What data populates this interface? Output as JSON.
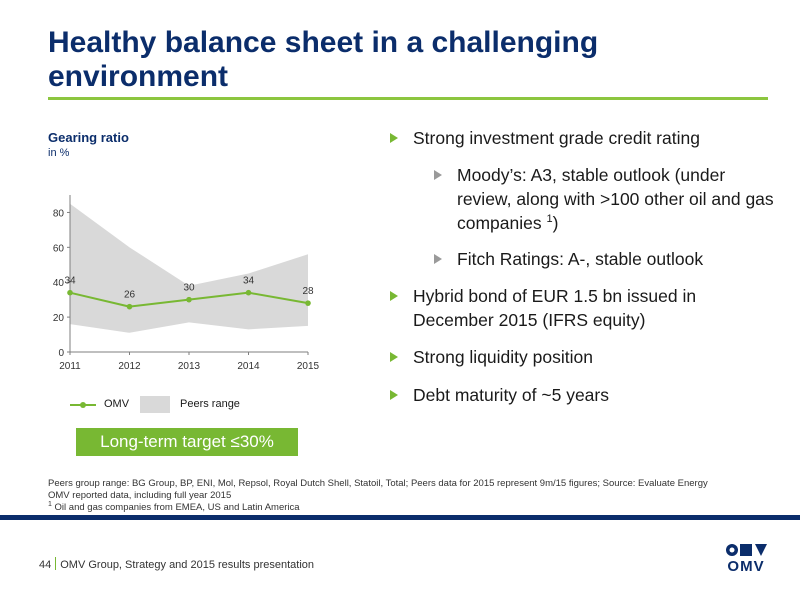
{
  "slide": {
    "title": "Healthy balance sheet in a challenging environment"
  },
  "colors": {
    "accent": "#78b833",
    "brand_navy": "#0b2d6b",
    "peers_fill": "#d9d9d9"
  },
  "chart_data": {
    "type": "line",
    "title": "Gearing ratio",
    "subtitle": "in %",
    "x": [
      "2011",
      "2012",
      "2013",
      "2014",
      "2015"
    ],
    "yticks": [
      "0",
      "20",
      "40",
      "60",
      "80"
    ],
    "ylim": [
      0,
      90
    ],
    "series": [
      {
        "name": "OMV",
        "values": [
          34,
          26,
          30,
          34,
          28
        ],
        "labels": [
          "34",
          "26",
          "30",
          "34",
          "28"
        ]
      }
    ],
    "peers_range": {
      "name": "Peers range",
      "upper": [
        85,
        60,
        38,
        45,
        56
      ],
      "lower": [
        16,
        11,
        17,
        13,
        15
      ]
    },
    "legend": {
      "omv_label": "OMV",
      "peers_label": "Peers range",
      "placement": "bottom"
    },
    "grid": false
  },
  "target": {
    "label": "Long-term target ≤30%"
  },
  "bullets": {
    "b1": "Strong investment grade credit rating",
    "s1_a": "Moody’s: A3, stable outlook (under review, along with >100 other oil and gas companies ",
    "s1_sup": "1",
    "s1_b": ")",
    "s2": "Fitch Ratings: A-, stable outlook",
    "b2": "Hybrid bond of EUR 1.5 bn issued in December 2015 (IFRS equity)",
    "b3": "Strong liquidity position",
    "b4": "Debt maturity of ~5 years"
  },
  "footnote": {
    "line1": "Peers group range: BG Group, BP, ENI, Mol, Repsol, Royal Dutch Shell, Statoil, Total; Peers data for 2015 represent 9m/15 figures; Source: Evaluate Energy",
    "line2": "OMV reported data, including full year 2015",
    "line3_sup": "1",
    "line3": "Oil and gas companies from EMEA, US and Latin America"
  },
  "footer": {
    "page_number": "44",
    "text": "OMV Group, Strategy and 2015 results presentation"
  },
  "logo": {
    "text": "OMV"
  }
}
